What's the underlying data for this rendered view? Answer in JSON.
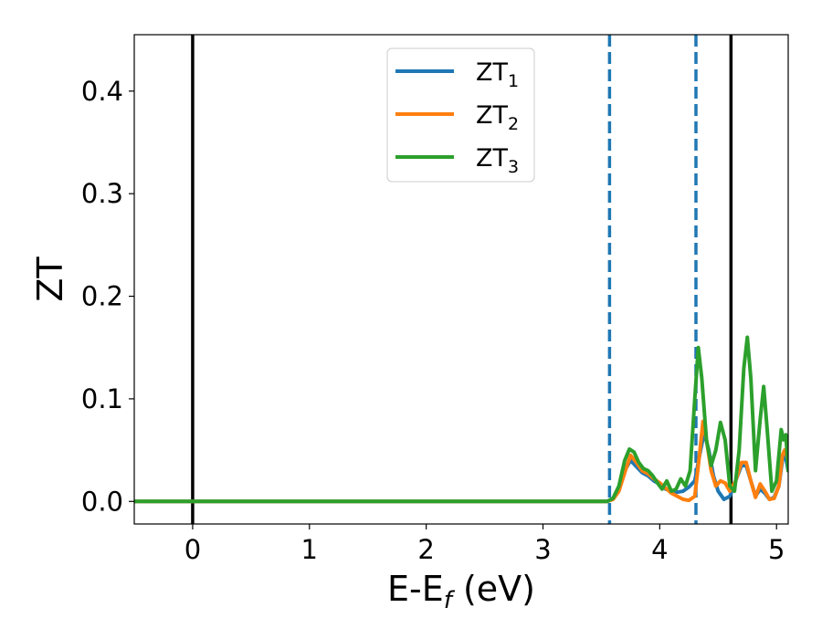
{
  "chart_data": {
    "type": "line",
    "xlabel": "E-E",
    "xlabel_sub": "f",
    "xlabel_unit": " (eV)",
    "ylabel": "ZT",
    "xlim": [
      -0.5,
      5.1
    ],
    "ylim": [
      -0.022,
      0.455
    ],
    "xticks": [
      0,
      1,
      2,
      3,
      4,
      5
    ],
    "xtick_labels": [
      "0",
      "1",
      "2",
      "3",
      "4",
      "5"
    ],
    "yticks": [
      0.0,
      0.1,
      0.2,
      0.3,
      0.4
    ],
    "ytick_labels": [
      "0.0",
      "0.1",
      "0.2",
      "0.3",
      "0.4"
    ],
    "grid": false,
    "legend_position": "upper-center",
    "vlines": [
      {
        "x": 0.0,
        "style": "solid",
        "color": "#000000"
      },
      {
        "x": 3.57,
        "style": "dashed",
        "color": "#1f77b4"
      },
      {
        "x": 4.31,
        "style": "dashed",
        "color": "#1f77b4"
      },
      {
        "x": 4.61,
        "style": "solid",
        "color": "#000000"
      }
    ],
    "series": [
      {
        "name": "ZT",
        "name_sub": "1",
        "color": "#1f77b4",
        "points": [
          [
            -0.5,
            0
          ],
          [
            3.4,
            0
          ],
          [
            3.55,
            0
          ],
          [
            3.6,
            0.003
          ],
          [
            3.65,
            0.012
          ],
          [
            3.7,
            0.03
          ],
          [
            3.75,
            0.04
          ],
          [
            3.8,
            0.034
          ],
          [
            3.85,
            0.028
          ],
          [
            3.9,
            0.025
          ],
          [
            3.95,
            0.02
          ],
          [
            4.0,
            0.017
          ],
          [
            4.05,
            0.012
          ],
          [
            4.1,
            0.01
          ],
          [
            4.15,
            0.009
          ],
          [
            4.2,
            0.01
          ],
          [
            4.25,
            0.014
          ],
          [
            4.3,
            0.02
          ],
          [
            4.35,
            0.05
          ],
          [
            4.38,
            0.067
          ],
          [
            4.42,
            0.05
          ],
          [
            4.46,
            0.025
          ],
          [
            4.5,
            0.01
          ],
          [
            4.55,
            0.002
          ],
          [
            4.6,
            0.005
          ],
          [
            4.65,
            0.02
          ],
          [
            4.7,
            0.035
          ],
          [
            4.74,
            0.035
          ],
          [
            4.78,
            0.02
          ],
          [
            4.82,
            0.005
          ],
          [
            4.86,
            0.012
          ],
          [
            4.9,
            0.008
          ],
          [
            4.94,
            0.002
          ],
          [
            4.98,
            0.004
          ],
          [
            5.02,
            0.015
          ],
          [
            5.05,
            0.04
          ],
          [
            5.07,
            0.048
          ],
          [
            5.1,
            0.03
          ]
        ]
      },
      {
        "name": "ZT",
        "name_sub": "2",
        "color": "#ff7f0e",
        "points": [
          [
            -0.5,
            0
          ],
          [
            3.4,
            0
          ],
          [
            3.55,
            0
          ],
          [
            3.6,
            0.002
          ],
          [
            3.65,
            0.01
          ],
          [
            3.7,
            0.028
          ],
          [
            3.75,
            0.045
          ],
          [
            3.8,
            0.038
          ],
          [
            3.85,
            0.03
          ],
          [
            3.9,
            0.027
          ],
          [
            3.95,
            0.022
          ],
          [
            4.0,
            0.018
          ],
          [
            4.05,
            0.013
          ],
          [
            4.1,
            0.008
          ],
          [
            4.15,
            0.005
          ],
          [
            4.2,
            0.002
          ],
          [
            4.25,
            0.001
          ],
          [
            4.3,
            0.005
          ],
          [
            4.34,
            0.045
          ],
          [
            4.37,
            0.078
          ],
          [
            4.4,
            0.06
          ],
          [
            4.44,
            0.03
          ],
          [
            4.48,
            0.015
          ],
          [
            4.52,
            0.02
          ],
          [
            4.56,
            0.018
          ],
          [
            4.6,
            0.01
          ],
          [
            4.65,
            0.02
          ],
          [
            4.7,
            0.038
          ],
          [
            4.74,
            0.038
          ],
          [
            4.78,
            0.02
          ],
          [
            4.82,
            0.004
          ],
          [
            4.86,
            0.017
          ],
          [
            4.9,
            0.01
          ],
          [
            4.94,
            0.002
          ],
          [
            4.98,
            0.003
          ],
          [
            5.02,
            0.015
          ],
          [
            5.05,
            0.045
          ],
          [
            5.07,
            0.05
          ],
          [
            5.1,
            0.04
          ]
        ]
      },
      {
        "name": "ZT",
        "name_sub": "3",
        "color": "#2ca02c",
        "points": [
          [
            -0.5,
            0
          ],
          [
            3.4,
            0
          ],
          [
            3.55,
            0
          ],
          [
            3.6,
            0.003
          ],
          [
            3.65,
            0.015
          ],
          [
            3.7,
            0.04
          ],
          [
            3.74,
            0.051
          ],
          [
            3.78,
            0.048
          ],
          [
            3.82,
            0.038
          ],
          [
            3.86,
            0.032
          ],
          [
            3.9,
            0.03
          ],
          [
            3.94,
            0.025
          ],
          [
            3.98,
            0.018
          ],
          [
            4.02,
            0.012
          ],
          [
            4.06,
            0.02
          ],
          [
            4.1,
            0.01
          ],
          [
            4.14,
            0.012
          ],
          [
            4.18,
            0.022
          ],
          [
            4.22,
            0.015
          ],
          [
            4.26,
            0.03
          ],
          [
            4.3,
            0.1
          ],
          [
            4.33,
            0.15
          ],
          [
            4.36,
            0.12
          ],
          [
            4.4,
            0.06
          ],
          [
            4.44,
            0.035
          ],
          [
            4.48,
            0.05
          ],
          [
            4.52,
            0.077
          ],
          [
            4.56,
            0.06
          ],
          [
            4.6,
            0.015
          ],
          [
            4.64,
            0.01
          ],
          [
            4.68,
            0.05
          ],
          [
            4.72,
            0.13
          ],
          [
            4.75,
            0.16
          ],
          [
            4.78,
            0.12
          ],
          [
            4.82,
            0.03
          ],
          [
            4.86,
            0.08
          ],
          [
            4.89,
            0.112
          ],
          [
            4.92,
            0.07
          ],
          [
            4.96,
            0.01
          ],
          [
            5.0,
            0.02
          ],
          [
            5.04,
            0.07
          ],
          [
            5.06,
            0.06
          ],
          [
            5.08,
            0.065
          ],
          [
            5.1,
            0.03
          ]
        ]
      }
    ]
  }
}
